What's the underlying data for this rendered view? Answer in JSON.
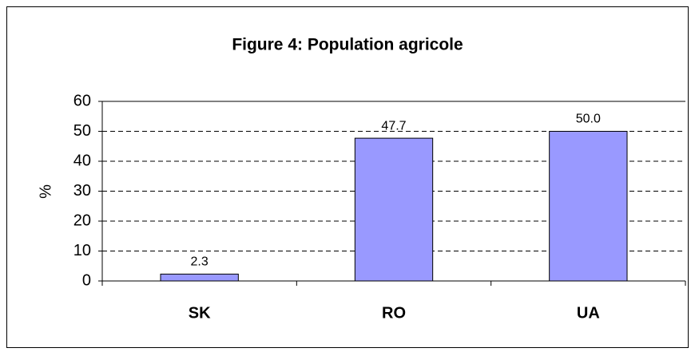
{
  "chart_data": {
    "type": "bar",
    "title": "Figure 4:  Population agricole",
    "y_label": "%",
    "categories": [
      "SK",
      "RO",
      "UA"
    ],
    "values": [
      2.3,
      47.7,
      50.0
    ],
    "value_labels": [
      "2.3",
      "47.7",
      "50.0"
    ],
    "color": "#9999ff",
    "ylim": [
      0,
      60
    ],
    "yticks": [
      0,
      10,
      20,
      30,
      40,
      50,
      60
    ],
    "grid": true
  }
}
